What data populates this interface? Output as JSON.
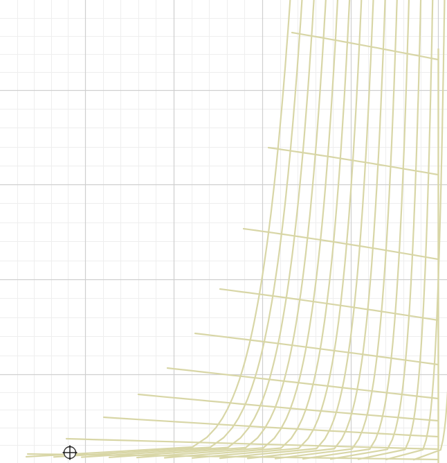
{
  "canvas": {
    "background_color": "#ffffff",
    "minor_grid_color": "#eeeeee",
    "major_grid_color": "#cfcfcf",
    "mesh_color": "#d8d6a6"
  },
  "cursor": {
    "icon": "move-cursor-icon"
  }
}
